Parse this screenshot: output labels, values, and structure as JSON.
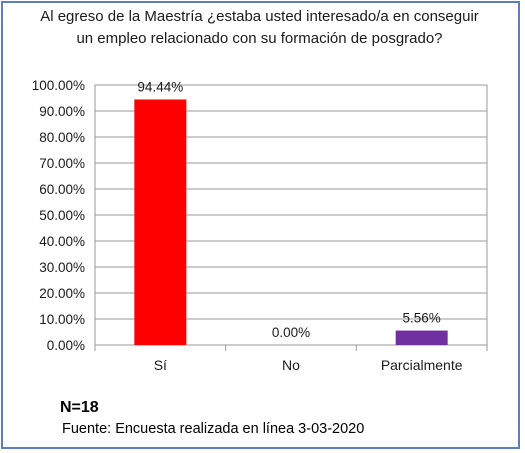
{
  "chart_data": {
    "type": "bar",
    "title_lines": [
      "Al egreso de la Maestría ¿estaba usted interesado/a en conseguir",
      "un empleo relacionado con su formación de posgrado?"
    ],
    "categories": [
      "Sí",
      "No",
      "Parcialmente"
    ],
    "values": [
      94.44,
      0.0,
      5.56
    ],
    "data_labels": [
      "94.44%",
      "0.00%",
      "5.56%"
    ],
    "bar_colors": [
      "#ff0000",
      "#808080",
      "#7030a0"
    ],
    "ylim": [
      0,
      100
    ],
    "yticks": [
      0,
      10,
      20,
      30,
      40,
      50,
      60,
      70,
      80,
      90,
      100
    ],
    "ytick_labels": [
      "0.00%",
      "10.00%",
      "20.00%",
      "30.00%",
      "40.00%",
      "50.00%",
      "60.00%",
      "70.00%",
      "80.00%",
      "90.00%",
      "100.00%"
    ],
    "grid": true,
    "legend": "none"
  },
  "footer": {
    "n_label": "N=18",
    "source": "Fuente: Encuesta realizada en línea 3-03-2020"
  }
}
